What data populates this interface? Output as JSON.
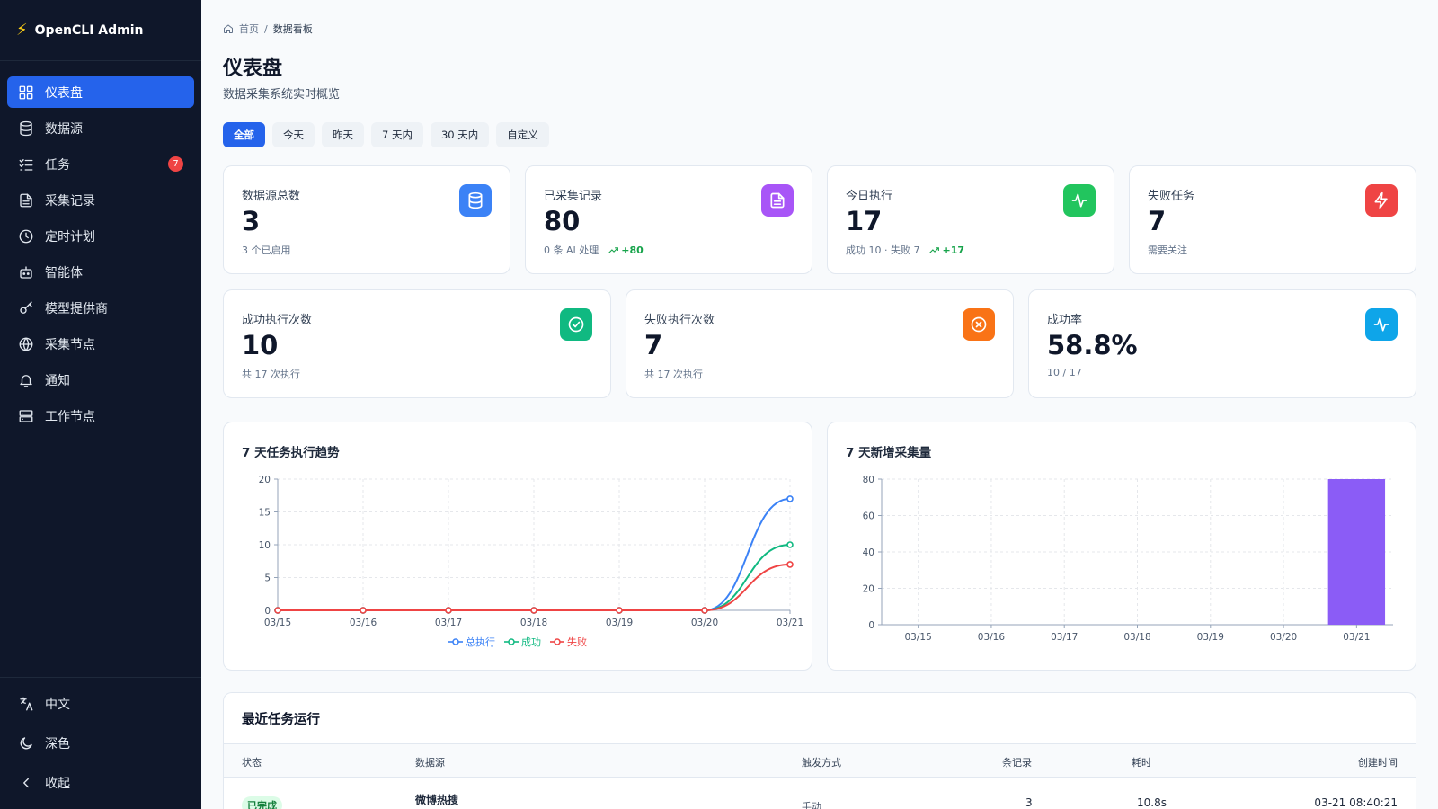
{
  "app": {
    "name": "OpenCLI Admin"
  },
  "sidebar": {
    "items": [
      {
        "label": "仪表盘",
        "icon": "dashboard-icon",
        "active": true
      },
      {
        "label": "数据源",
        "icon": "database-icon"
      },
      {
        "label": "任务",
        "icon": "list-check-icon",
        "badge": "7"
      },
      {
        "label": "采集记录",
        "icon": "file-icon"
      },
      {
        "label": "定时计划",
        "icon": "clock-icon"
      },
      {
        "label": "智能体",
        "icon": "bot-icon"
      },
      {
        "label": "模型提供商",
        "icon": "key-icon"
      },
      {
        "label": "采集节点",
        "icon": "globe-icon"
      },
      {
        "label": "通知",
        "icon": "bell-icon"
      },
      {
        "label": "工作节点",
        "icon": "server-icon"
      }
    ],
    "bottom": [
      {
        "label": "中文",
        "icon": "language-icon"
      },
      {
        "label": "深色",
        "icon": "moon-icon"
      },
      {
        "label": "收起",
        "icon": "chevron-left-icon"
      }
    ]
  },
  "breadcrumb": {
    "home": "首页",
    "separator": "/",
    "current": "数据看板"
  },
  "page": {
    "title": "仪表盘",
    "subtitle": "数据采集系统实时概览"
  },
  "filters": [
    "全部",
    "今天",
    "昨天",
    "7 天内",
    "30 天内",
    "自定义"
  ],
  "stats_row1": [
    {
      "label": "数据源总数",
      "value": "3",
      "foot": "3 个已启用",
      "trend": "",
      "color": "#3b82f6",
      "icon": "database-icon"
    },
    {
      "label": "已采集记录",
      "value": "80",
      "foot": "0 条 AI 处理",
      "trend": "+80",
      "color": "#a855f7",
      "icon": "file-icon"
    },
    {
      "label": "今日执行",
      "value": "17",
      "foot": "成功 10 · 失败 7",
      "trend": "+17",
      "color": "#22c55e",
      "icon": "activity-icon"
    },
    {
      "label": "失败任务",
      "value": "7",
      "foot": "需要关注",
      "trend": "",
      "color": "#ef4444",
      "icon": "zap-icon"
    }
  ],
  "stats_row2": [
    {
      "label": "成功执行次数",
      "value": "10",
      "foot": "共 17 次执行",
      "color": "#10b981",
      "icon": "check-circle-icon"
    },
    {
      "label": "失败执行次数",
      "value": "7",
      "foot": "共 17 次执行",
      "color": "#f97316",
      "icon": "x-circle-icon"
    },
    {
      "label": "成功率",
      "value": "58.8%",
      "foot": "10 / 17",
      "color": "#0ea5e9",
      "icon": "activity-icon"
    }
  ],
  "chart_data": [
    {
      "type": "line",
      "title": "7 天任务执行趋势",
      "categories": [
        "03/15",
        "03/16",
        "03/17",
        "03/18",
        "03/19",
        "03/20",
        "03/21"
      ],
      "series": [
        {
          "name": "总执行",
          "values": [
            0,
            0,
            0,
            0,
            0,
            0,
            17
          ],
          "color": "#3b82f6"
        },
        {
          "name": "成功",
          "values": [
            0,
            0,
            0,
            0,
            0,
            0,
            10
          ],
          "color": "#10b981"
        },
        {
          "name": "失败",
          "values": [
            0,
            0,
            0,
            0,
            0,
            0,
            7
          ],
          "color": "#ef4444"
        }
      ],
      "ylim": [
        0,
        20
      ],
      "yticks": [
        0,
        5,
        10,
        15,
        20
      ],
      "grid": true,
      "legend": "bottom"
    },
    {
      "type": "bar",
      "title": "7 天新增采集量",
      "categories": [
        "03/15",
        "03/16",
        "03/17",
        "03/18",
        "03/19",
        "03/20",
        "03/21"
      ],
      "values": [
        0,
        0,
        0,
        0,
        0,
        0,
        80
      ],
      "color": "#8b5cf6",
      "ylim": [
        0,
        80
      ],
      "yticks": [
        0,
        20,
        40,
        60,
        80
      ],
      "grid": true
    }
  ],
  "recent": {
    "title": "最近任务运行",
    "columns": [
      "状态",
      "数据源",
      "触发方式",
      "条记录",
      "耗时",
      "创建时间"
    ],
    "rows": [
      {
        "status": "已完成",
        "source": "微博热搜",
        "trigger": "手动",
        "records": "3",
        "duration": "10.8s",
        "created": "03-21 08:40:21"
      }
    ]
  }
}
